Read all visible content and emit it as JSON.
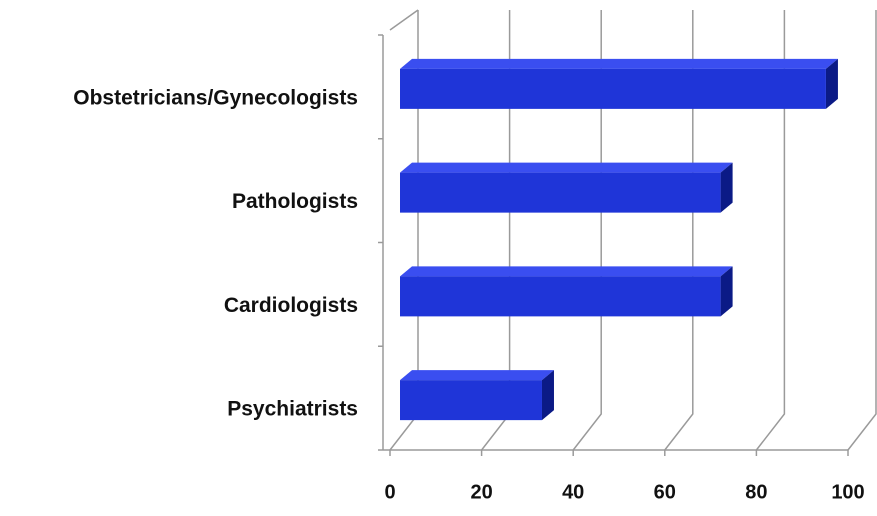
{
  "chart_data": {
    "type": "bar",
    "orientation": "horizontal",
    "categories": [
      "Obstetricians/Gynecologists",
      "Pathologists",
      "Cardiologists",
      "Psychiatrists"
    ],
    "values": [
      93,
      70,
      70,
      31
    ],
    "color": "#1f35d8",
    "xlim": [
      0,
      100
    ],
    "xticks": [
      0,
      20,
      40,
      60,
      80,
      100
    ],
    "grid": true
  }
}
